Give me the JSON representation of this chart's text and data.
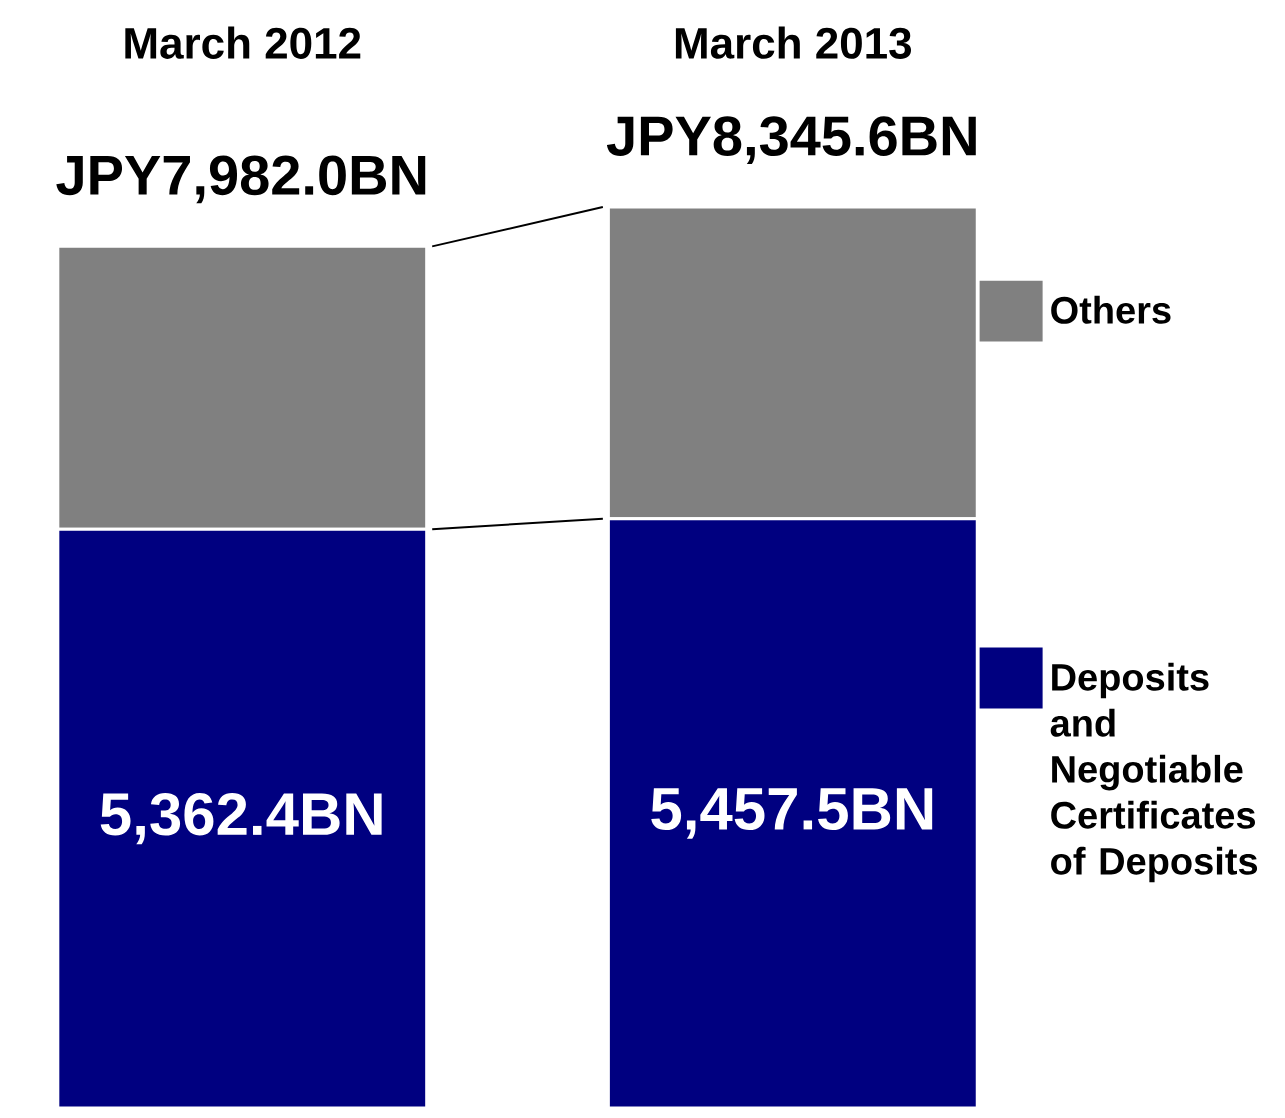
{
  "chart_data": {
    "type": "bar",
    "stacked": true,
    "categories": [
      "March 2012",
      "March 2013"
    ],
    "series": [
      {
        "name": "Deposits and Negotiable Certificates of Deposits",
        "color": "#000080",
        "values": [
          5362.4,
          5457.5
        ],
        "value_labels": [
          "5,362.4BN",
          "5,457.5BN"
        ]
      },
      {
        "name": "Others",
        "color": "#808080",
        "values": [
          2619.6,
          2888.1
        ]
      }
    ],
    "totals": [
      "JPY7,982.0BN",
      "JPY8,345.6BN"
    ],
    "legend": "right"
  }
}
